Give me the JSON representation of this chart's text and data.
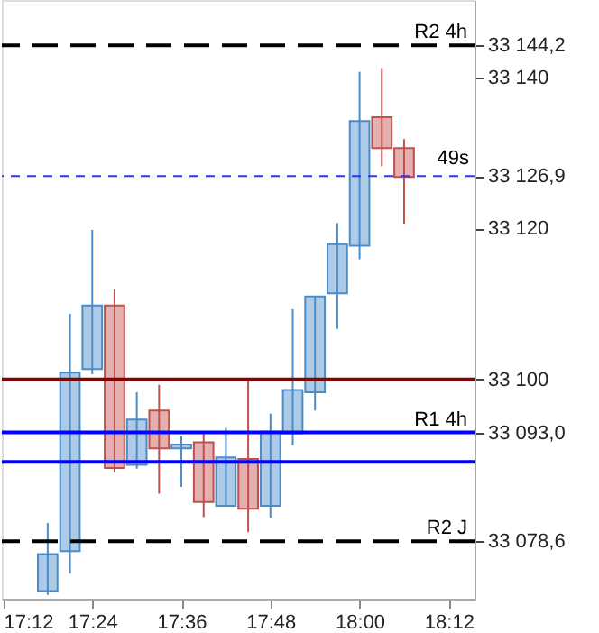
{
  "chart_data": {
    "type": "candlestick",
    "x": [
      17.3,
      17.35,
      17.4,
      17.45,
      17.5,
      17.55,
      17.6,
      17.65,
      17.7,
      17.75,
      17.8,
      17.85,
      17.9,
      17.95,
      18.0,
      18.05,
      18.1
    ],
    "ohlc": [
      [
        33072,
        33081,
        33071.5,
        33076.9
      ],
      [
        33077.3,
        33108.7,
        33074.3,
        33100.9
      ],
      [
        33101.4,
        33119.8,
        33100.7,
        33109.8
      ],
      [
        33109.8,
        33111.9,
        33087.7,
        33088.3
      ],
      [
        33088.7,
        33098.3,
        33088.2,
        33094.7
      ],
      [
        33095.9,
        33099.3,
        33084.9,
        33090.9
      ],
      [
        33090.9,
        33092.5,
        33085.8,
        33091.4
      ],
      [
        33091.7,
        33092.9,
        33081.8,
        33083.8
      ],
      [
        33083.3,
        33093.6,
        33083.3,
        33089.7
      ],
      [
        33089.5,
        33100.2,
        33079.8,
        33082.9
      ],
      [
        33083.3,
        33095.5,
        33081.7,
        33093.1
      ],
      [
        33092.9,
        33109.3,
        33091.3,
        33098.6
      ],
      [
        33098.3,
        33111,
        33095.9,
        33111
      ],
      [
        33111.4,
        33120.7,
        33106.7,
        33117.9
      ],
      [
        33117.7,
        33140.7,
        33115.9,
        33134.2
      ],
      [
        33134.7,
        33141.2,
        33128.2,
        33130.6
      ],
      [
        33130.6,
        33131.8,
        33120.6,
        33126.8
      ]
    ],
    "colors": [
      "#4a8cc9",
      "#4a8cc9",
      "#4a8cc9",
      "#c0504d",
      "#4a8cc9",
      "#c0504d",
      "#4a8cc9",
      "#c0504d",
      "#4a8cc9",
      "#c0504d",
      "#4a8cc9",
      "#4a8cc9",
      "#4a8cc9",
      "#4a8cc9",
      "#4a8cc9",
      "#c0504d",
      "#c0504d"
    ],
    "xlim": [
      17.197,
      18.258
    ],
    "xticks": [
      {
        "value": 17.2,
        "label": "17:12"
      },
      {
        "value": 17.4,
        "label": "17:24"
      },
      {
        "value": 17.6,
        "label": "17:36"
      },
      {
        "value": 17.8,
        "label": "17:48"
      },
      {
        "value": 18.0,
        "label": "18:00"
      },
      {
        "value": 18.2,
        "label": "18:12"
      }
    ],
    "ylim": [
      33071,
      33150.2
    ],
    "yticks": [
      {
        "value": 33144.2,
        "label": "33 144,2"
      },
      {
        "value": 33140,
        "label": "33 140"
      },
      {
        "value": 33126.9,
        "label": "33 126,9"
      },
      {
        "value": 33120,
        "label": "33 120"
      },
      {
        "value": 33100,
        "label": "33 100"
      },
      {
        "value": 33093.0,
        "label": "33 093,0"
      },
      {
        "value": 33078.6,
        "label": "33 078,6"
      }
    ],
    "ref_lines": [
      {
        "axis": "y",
        "value": 33144.2,
        "label": "R2 4h",
        "color": "#000000",
        "line_style": "dashed"
      },
      {
        "axis": "y",
        "value": 33126.9,
        "label": null,
        "color": "#3333ff",
        "line_style": "dashed"
      },
      {
        "axis": "y",
        "value": 33100,
        "label": null,
        "color": "#8b0000",
        "line_style": "solid"
      },
      {
        "axis": "y",
        "value": 33093.0,
        "label": "R1 4h",
        "color": "#0000ff",
        "line_style": "solid"
      },
      {
        "axis": "y",
        "value": 33089.1,
        "label": null,
        "color": "#0000ff",
        "line_style": "solid"
      },
      {
        "axis": "y",
        "value": 33078.6,
        "label": "R2 J",
        "color": "#000000",
        "line_style": "dashed"
      }
    ],
    "annotations": [
      "49s"
    ],
    "grid": false
  }
}
